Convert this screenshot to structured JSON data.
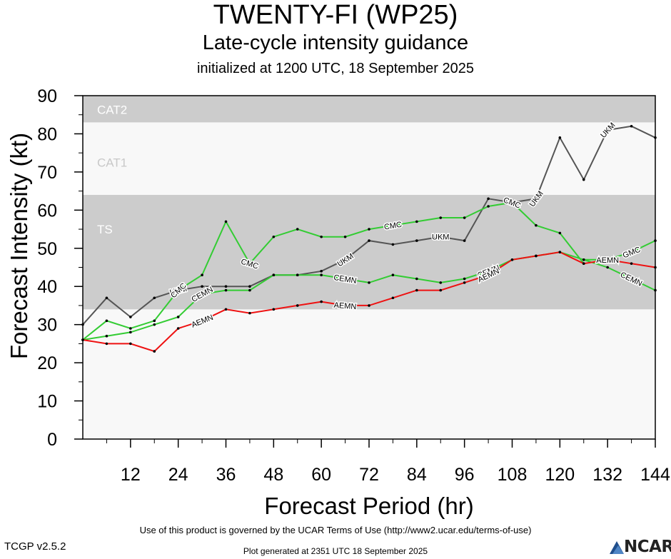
{
  "titles": {
    "main": "TWENTY-FI (WP25)",
    "sub": "Late-cycle intensity guidance",
    "init": "initialized at 1200 UTC, 18 September 2025"
  },
  "footer": {
    "terms": "Use of this product is governed by the UCAR Terms of Use (http://www2.ucar.edu/terms-of-use)",
    "version": "TCGP v2.5.2",
    "generated": "Plot generated at 2351 UTC   18 September 2025",
    "logo": "NCAR"
  },
  "colors": {
    "band_dark": "#cccccc",
    "band_light": "#f8f8f8"
  },
  "chart_data": {
    "type": "line",
    "xlabel": "Forecast Period (hr)",
    "ylabel": "Forecast Intensity (kt)",
    "xlim": [
      0,
      144
    ],
    "ylim": [
      0,
      90
    ],
    "xticks": [
      12,
      24,
      36,
      48,
      60,
      72,
      84,
      96,
      108,
      120,
      132,
      144
    ],
    "yticks": [
      0,
      10,
      20,
      30,
      40,
      50,
      60,
      70,
      80,
      90
    ],
    "grid": false,
    "bands": [
      {
        "label": "TS",
        "from": 34,
        "to": 64,
        "color": "#cccccc"
      },
      {
        "label": "CAT1",
        "from": 64,
        "to": 83,
        "color": "#f8f8f8"
      },
      {
        "label": "CAT2",
        "from": 83,
        "to": 90,
        "color": "#cccccc"
      }
    ],
    "series": [
      {
        "name": "UKM",
        "color": "#555555",
        "x": [
          0,
          6,
          12,
          18,
          24,
          30,
          36,
          42,
          48,
          54,
          60,
          66,
          72,
          78,
          84,
          90,
          96,
          102,
          108,
          114,
          120,
          126,
          132,
          138,
          144
        ],
        "y": [
          30,
          37,
          32,
          37,
          39,
          40,
          40,
          40,
          43,
          43,
          44,
          47,
          52,
          51,
          52,
          53,
          52,
          63,
          62,
          63,
          79,
          68,
          81,
          82,
          79
        ],
        "label_x": [
          24,
          66,
          90,
          114,
          132
        ]
      },
      {
        "name": "CMC",
        "color": "#33cc33",
        "x": [
          0,
          6,
          12,
          18,
          24,
          30,
          36,
          42,
          48,
          54,
          60,
          66,
          72,
          78,
          84,
          90,
          96,
          102,
          108,
          114,
          120,
          126
        ],
        "y": [
          26,
          31,
          29,
          31,
          39,
          43,
          57,
          46,
          53,
          55,
          53,
          53,
          55,
          56,
          57,
          58,
          58,
          61,
          62,
          56,
          54,
          46
        ],
        "label_x": [
          24,
          42,
          78,
          108
        ]
      },
      {
        "name": "GMC",
        "color": "#33cc33",
        "x": [
          126,
          132,
          138,
          144
        ],
        "y": [
          47,
          47,
          49,
          52
        ],
        "label_x": [
          138
        ]
      },
      {
        "name": "CEMN",
        "color": "#33cc33",
        "x": [
          0,
          6,
          12,
          18,
          24,
          30,
          36,
          42,
          48,
          54,
          60,
          66,
          72,
          78,
          84,
          90,
          96,
          102,
          108,
          114,
          120,
          126,
          132,
          138,
          144
        ],
        "y": [
          26,
          27,
          28,
          30,
          32,
          38,
          39,
          39,
          43,
          43,
          43,
          42,
          41,
          43,
          42,
          41,
          42,
          44,
          47,
          48,
          49,
          47,
          45,
          42,
          39
        ],
        "label_x": [
          30,
          66,
          102,
          138
        ]
      },
      {
        "name": "AEMN",
        "color": "#ee1111",
        "x": [
          0,
          6,
          12,
          18,
          24,
          30,
          36,
          42,
          48,
          54,
          60,
          66,
          72,
          78,
          84,
          90,
          96,
          102,
          108,
          114,
          120,
          126,
          132,
          138,
          144
        ],
        "y": [
          26,
          25,
          25,
          23,
          29,
          31,
          34,
          33,
          34,
          35,
          36,
          35,
          35,
          37,
          39,
          39,
          41,
          43,
          47,
          48,
          49,
          46,
          47,
          46,
          45
        ],
        "label_x": [
          30,
          66,
          102,
          132
        ]
      }
    ]
  }
}
